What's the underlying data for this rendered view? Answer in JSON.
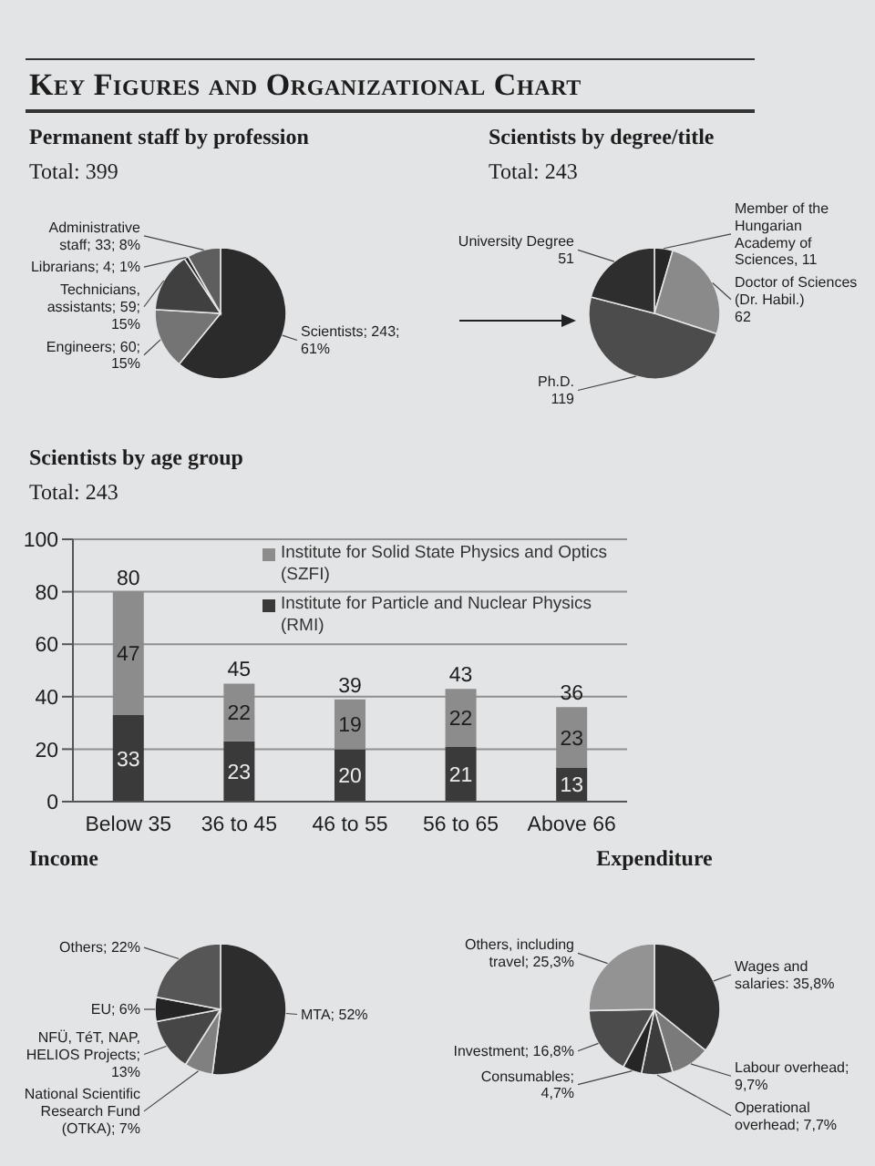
{
  "chart_data": [
    {
      "type": "other",
      "title": "Key Figures and Organizational Chart"
    },
    {
      "type": "pie",
      "title": "Permanent staff by profession",
      "subtitle": "Total: 399",
      "categories": [
        "Scientists",
        "Engineers",
        "Technicians, assistants",
        "Librarians",
        "Administrative staff"
      ],
      "values": [
        243,
        60,
        59,
        4,
        33
      ],
      "value_labels": [
        "; 243; 61%",
        "; 60; 15%",
        "; 59; 15%",
        "; 4; 1%",
        "; 33; 8%"
      ],
      "colors": [
        "#2b2b2b",
        "#747474",
        "#404040",
        "#222222",
        "#5e5e5e"
      ]
    },
    {
      "type": "pie",
      "title": "Scientists by degree/title",
      "subtitle": "Total: 243",
      "categories": [
        "Member of the Hungarian Academy of Sciences",
        "Doctor of Sciences (Dr. Habil.)",
        "Ph.D.",
        "University Degree"
      ],
      "values": [
        11,
        62,
        119,
        51
      ],
      "value_labels": [
        ", 11",
        "\n62",
        "\n119",
        "\n51"
      ],
      "colors": [
        "#262626",
        "#8a8a8a",
        "#4c4c4c",
        "#2e2e2e"
      ]
    },
    {
      "type": "bar",
      "title": "Scientists by age group",
      "subtitle": "Total: 243",
      "categories": [
        "Below 35",
        "36 to 45",
        "46 to 55",
        "56 to 65",
        "Above 66"
      ],
      "series": [
        {
          "name": "Institute for Particle and Nuclear Physics (RMI)",
          "color": "#3a3a3a",
          "values": [
            33,
            23,
            20,
            21,
            13
          ]
        },
        {
          "name": "Institute for Solid State Physics and Optics (SZFI)",
          "color": "#8c8c8c",
          "values": [
            47,
            22,
            19,
            22,
            23
          ]
        }
      ],
      "stacked": true,
      "totals": [
        "80",
        "45",
        "39",
        "43",
        "36"
      ],
      "data_labels": true,
      "ylim": [
        0,
        100
      ],
      "yticks": [
        0,
        20,
        40,
        60,
        80,
        100
      ],
      "grid": "y",
      "legend": "top right"
    },
    {
      "type": "pie",
      "title": "Income",
      "categories": [
        "MTA",
        "National Scientific Research Fund (OTKA)",
        "NFÜ, TéT, NAP, HELIOS Projects",
        "EU",
        "Others"
      ],
      "values": [
        52,
        7,
        13,
        6,
        22
      ],
      "value_labels": [
        "; 52%",
        "; 7%",
        "; 13%",
        "; 6%",
        "; 22%"
      ],
      "colors": [
        "#2d2d2d",
        "#808080",
        "#464646",
        "#242424",
        "#565656"
      ]
    },
    {
      "type": "pie",
      "title": "Expenditure",
      "categories": [
        "Wages and salaries",
        "Labour overhead",
        "Operational overhead",
        "Consumables",
        "Investment",
        "Others, including travel"
      ],
      "values": [
        35.8,
        9.7,
        7.7,
        4.7,
        16.8,
        25.3
      ],
      "value_labels": [
        ": 35,8%",
        "; 9,7%",
        "; 7,7%",
        "; 4,7%",
        "; 16,8%",
        "; 25,3%"
      ],
      "colors": [
        "#303030",
        "#7a7a7a",
        "#3c3c3c",
        "#262626",
        "#4c4c4c",
        "#939393"
      ]
    }
  ]
}
